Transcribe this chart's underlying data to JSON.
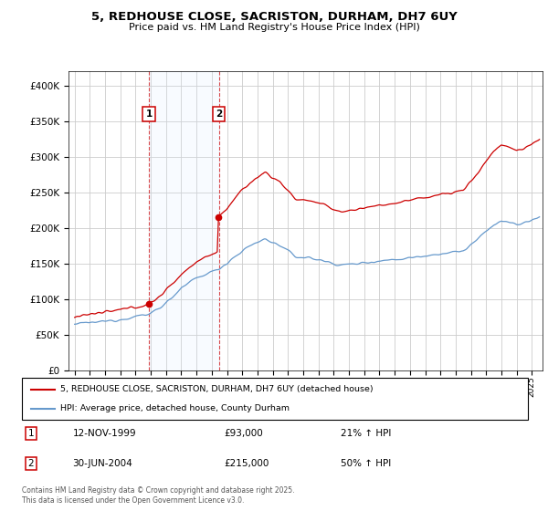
{
  "title": "5, REDHOUSE CLOSE, SACRISTON, DURHAM, DH7 6UY",
  "subtitle": "Price paid vs. HM Land Registry's House Price Index (HPI)",
  "sale1_date": "12-NOV-1999",
  "sale1_price": 93000,
  "sale1_hpi_change": "21% ↑ HPI",
  "sale2_date": "30-JUN-2004",
  "sale2_price": 215000,
  "sale2_hpi_change": "50% ↑ HPI",
  "legend_line1": "5, REDHOUSE CLOSE, SACRISTON, DURHAM, DH7 6UY (detached house)",
  "legend_line2": "HPI: Average price, detached house, County Durham",
  "footnote": "Contains HM Land Registry data © Crown copyright and database right 2025.\nThis data is licensed under the Open Government Licence v3.0.",
  "house_color": "#cc0000",
  "hpi_color": "#6699cc",
  "background_color": "#ffffff",
  "grid_color": "#cccccc",
  "band_color": "#ddeeff",
  "ylim_max": 420000,
  "yticks": [
    0,
    50000,
    100000,
    150000,
    200000,
    250000,
    300000,
    350000,
    400000
  ]
}
